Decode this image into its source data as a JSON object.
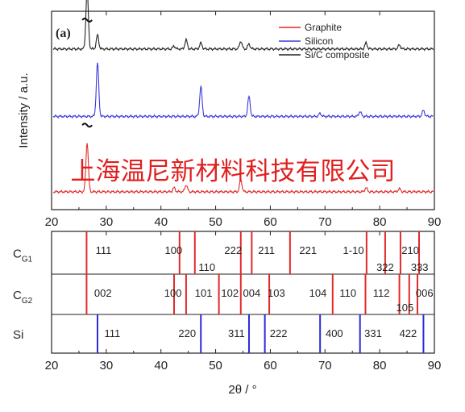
{
  "chart_data": [
    {
      "type": "line",
      "panel": "(a)",
      "ylabel": "Intensity / a.u.",
      "xlim": [
        20,
        90
      ],
      "xticks": [
        20,
        30,
        40,
        50,
        60,
        70,
        80,
        90
      ],
      "legend": {
        "placement": "top-right"
      },
      "series": [
        {
          "name": "Graphite",
          "color": "#e02a2a",
          "baseline": 0.09,
          "peaks": [
            [
              26.5,
              0.25
            ],
            [
              42.4,
              0.02
            ],
            [
              44.6,
              0.035
            ],
            [
              54.6,
              0.06
            ],
            [
              77.5,
              0.02
            ],
            [
              83.6,
              0.015
            ]
          ]
        },
        {
          "name": "Silicon",
          "color": "#3a3adc",
          "baseline": 0.47,
          "peaks": [
            [
              28.4,
              0.27
            ],
            [
              47.3,
              0.15
            ],
            [
              56.1,
              0.1
            ],
            [
              69.1,
              0.015
            ],
            [
              76.4,
              0.025
            ],
            [
              88.0,
              0.03
            ]
          ]
        },
        {
          "name": "Si/C composite",
          "color": "#222222",
          "baseline": 0.81,
          "peaks": [
            [
              26.5,
              0.3
            ],
            [
              28.4,
              0.07
            ],
            [
              42.4,
              0.015
            ],
            [
              44.6,
              0.045
            ],
            [
              47.3,
              0.03
            ],
            [
              54.6,
              0.04
            ],
            [
              56.1,
              0.025
            ],
            [
              77.5,
              0.03
            ],
            [
              83.6,
              0.02
            ]
          ]
        }
      ],
      "tilde_marks": [
        [
          26.5,
          0.96
        ],
        [
          26.5,
          0.43
        ]
      ]
    },
    {
      "type": "reference-lines",
      "xlabel": "2θ / °",
      "xlim": [
        20,
        90
      ],
      "xticks": [
        20,
        30,
        40,
        50,
        60,
        70,
        80,
        90
      ],
      "rows": [
        {
          "name_main": "C",
          "name_sub": "G1",
          "color": "#e02a2a",
          "positions": [
            26.4,
            43.4,
            46.2,
            54.6,
            56.6,
            63.6,
            77.6,
            81.0,
            83.8,
            87.2
          ],
          "labels": [
            {
              "text": "111",
              "x": 29.5,
              "level": "top"
            },
            {
              "text": "100",
              "x": 42.3,
              "level": "top"
            },
            {
              "text": "110",
              "x": 48.4,
              "level": "low"
            },
            {
              "text": "222",
              "x": 53.2,
              "level": "top"
            },
            {
              "text": "211",
              "x": 59.3,
              "level": "top"
            },
            {
              "text": "221",
              "x": 66.9,
              "level": "top"
            },
            {
              "text": "1-10",
              "x": 75.2,
              "level": "top"
            },
            {
              "text": "322",
              "x": 81.0,
              "level": "low"
            },
            {
              "text": "210",
              "x": 85.6,
              "level": "top"
            },
            {
              "text": "333",
              "x": 87.3,
              "level": "low"
            }
          ]
        },
        {
          "name_main": "C",
          "name_sub": "G2",
          "color": "#e02a2a",
          "positions": [
            26.4,
            42.4,
            44.6,
            50.6,
            54.6,
            59.8,
            71.4,
            77.4,
            83.6,
            85.4,
            86.9
          ],
          "labels": [
            {
              "text": "002",
              "x": 29.4,
              "level": "top"
            },
            {
              "text": "100",
              "x": 42.2,
              "level": "top"
            },
            {
              "text": "101",
              "x": 47.8,
              "level": "top"
            },
            {
              "text": "102",
              "x": 52.6,
              "level": "top"
            },
            {
              "text": "004",
              "x": 56.6,
              "level": "top"
            },
            {
              "text": "103",
              "x": 61.1,
              "level": "top"
            },
            {
              "text": "104",
              "x": 68.7,
              "level": "top"
            },
            {
              "text": "110",
              "x": 74.2,
              "level": "top"
            },
            {
              "text": "112",
              "x": 80.3,
              "level": "top"
            },
            {
              "text": "105",
              "x": 84.6,
              "level": "low"
            },
            {
              "text": "006",
              "x": 88.2,
              "level": "top"
            }
          ]
        },
        {
          "name_main": "Si",
          "name_sub": "",
          "color": "#2b2bd8",
          "positions": [
            28.4,
            47.3,
            56.1,
            59.0,
            69.1,
            76.4,
            88.0
          ],
          "labels": [
            {
              "text": "111",
              "x": 31.1,
              "level": "top"
            },
            {
              "text": "220",
              "x": 44.8,
              "level": "top"
            },
            {
              "text": "311",
              "x": 53.8,
              "level": "top"
            },
            {
              "text": "222",
              "x": 61.5,
              "level": "top"
            },
            {
              "text": "400",
              "x": 71.7,
              "level": "top"
            },
            {
              "text": "331",
              "x": 78.8,
              "level": "top"
            },
            {
              "text": "422",
              "x": 85.2,
              "level": "top"
            }
          ]
        }
      ]
    }
  ],
  "watermark": "上海温尼新材料科技有限公司"
}
